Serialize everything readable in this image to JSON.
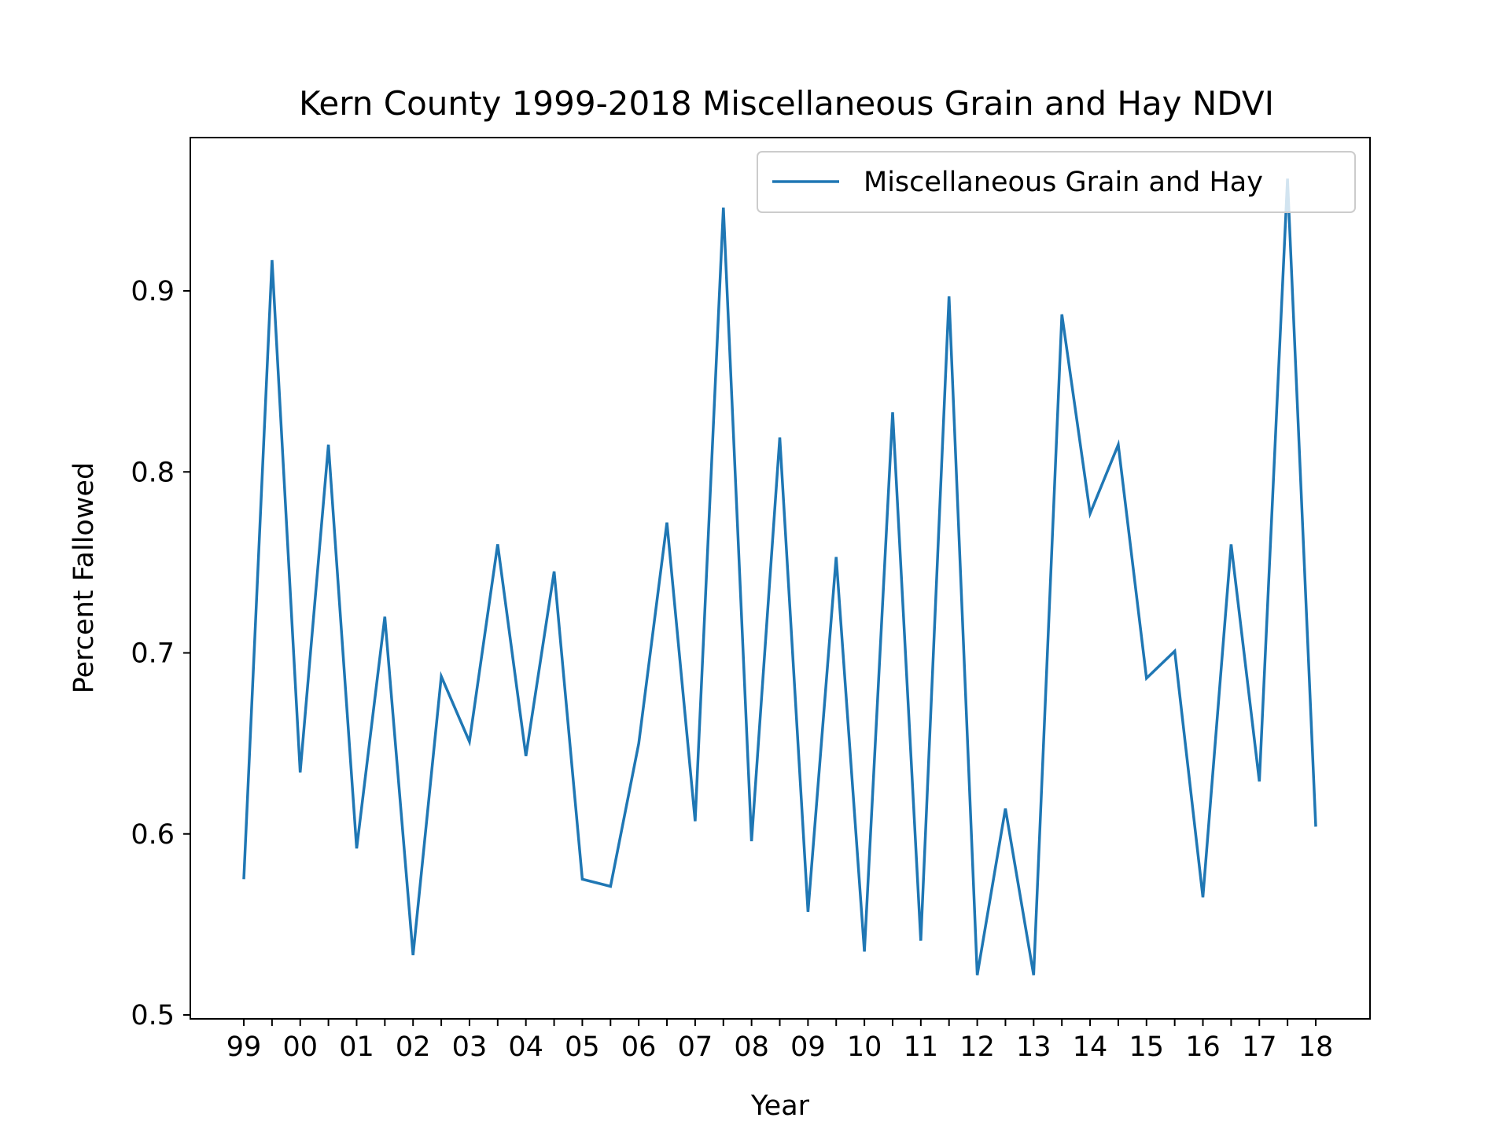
{
  "chart_data": {
    "type": "line",
    "title": "Kern County 1999-2018 Miscellaneous Grain and Hay NDVI",
    "xlabel": "Year",
    "ylabel": "Percent Fallowed",
    "ylim": [
      0.5,
      0.98
    ],
    "yticks": [
      0.5,
      0.6,
      0.7,
      0.8,
      0.9
    ],
    "ytick_labels": [
      "0.5",
      "0.6",
      "0.7",
      "0.8",
      "0.9"
    ],
    "xticks": [
      "99",
      "00",
      "01",
      "02",
      "03",
      "04",
      "05",
      "06",
      "07",
      "08",
      "09",
      "10",
      "11",
      "12",
      "13",
      "14",
      "15",
      "16",
      "17",
      "18"
    ],
    "grid": false,
    "legend_position": "upper right",
    "series": [
      {
        "name": "Miscellaneous Grain and Hay",
        "color": "#1f77b4",
        "values": [
          0.575,
          0.917,
          0.634,
          0.815,
          0.592,
          0.72,
          0.533,
          0.687,
          0.651,
          0.76,
          0.643,
          0.745,
          0.575,
          0.571,
          0.65,
          0.772,
          0.607,
          0.946,
          0.596,
          0.819,
          0.557,
          0.753,
          0.535,
          0.833,
          0.541,
          0.897,
          0.522,
          0.614,
          0.522,
          0.887,
          0.777,
          0.815,
          0.686,
          0.701,
          0.565,
          0.76,
          0.629,
          0.962,
          0.604
        ]
      }
    ]
  }
}
